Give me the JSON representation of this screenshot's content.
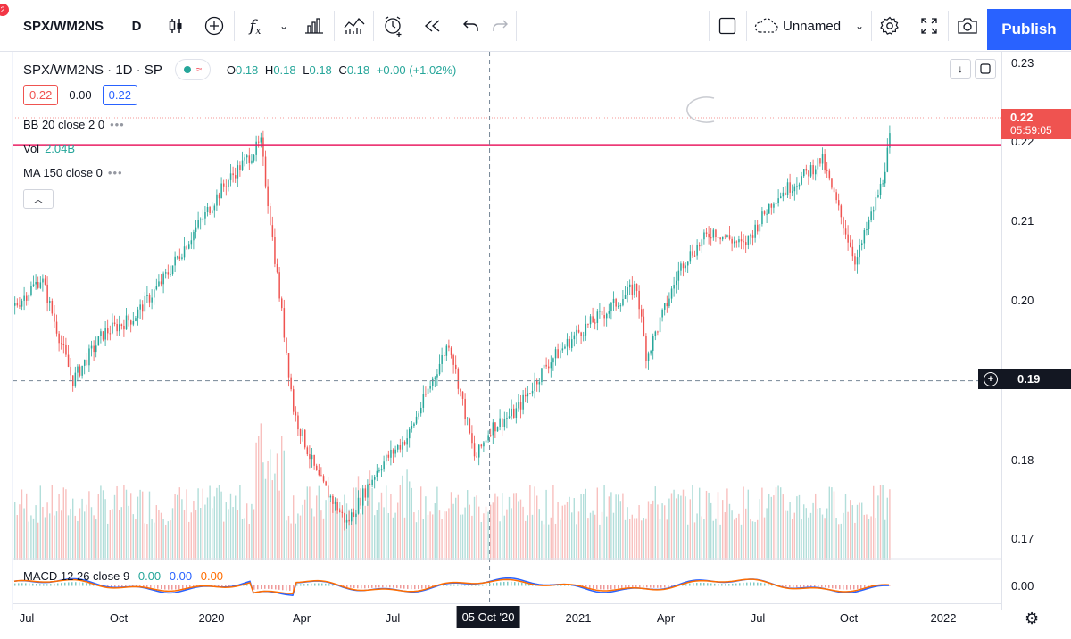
{
  "toolbar": {
    "notification_count": "2",
    "symbol": "SPX/WM2NS",
    "interval": "D",
    "layout_name": "Unnamed",
    "publish_label": "Publish"
  },
  "legend": {
    "title": "SPX/WM2NS · 1D · SP",
    "open_label": "O",
    "open": "0.18",
    "high_label": "H",
    "high": "0.18",
    "low_label": "L",
    "low": "0.18",
    "close_label": "C",
    "close": "0.18",
    "change": "+0.00 (+1.02%)",
    "bid": "0.22",
    "spread": "0.00",
    "ask": "0.22"
  },
  "indicators": {
    "bb": "BB 20 close 2 0",
    "vol_label": "Vol",
    "vol_value": "2.04B",
    "ma": "MA 150 close 0",
    "macd_label": "MACD 12 26 close 9",
    "macd_values": [
      "0.00",
      "0.00",
      "0.00"
    ]
  },
  "price_axis": {
    "labels": [
      "0.23",
      "0.22",
      "0.21",
      "0.20",
      "0.19",
      "0.18",
      "0.17",
      "0.00"
    ],
    "last_price": "0.22",
    "countdown": "05:59:05",
    "crosshair_price": "0.19"
  },
  "time_axis": {
    "labels": [
      "Jul",
      "Oct",
      "2020",
      "Apr",
      "Jul",
      "2021",
      "Apr",
      "Jul",
      "Oct",
      "2022"
    ],
    "crosshair_date": "05 Oct '20"
  },
  "colors": {
    "up": "#26a69a",
    "down": "#ef5350",
    "horizontal_line": "#e91e63",
    "accent": "#2962ff",
    "macd_line": "#2962ff",
    "signal_line": "#ff6d00"
  },
  "chart_data": {
    "type": "candlestick",
    "title": "SPX/WM2NS · 1D · SP",
    "x": [
      "2019-06-15",
      "2019-07-15",
      "2019-08-15",
      "2019-09-15",
      "2019-10-15",
      "2019-11-15",
      "2019-12-15",
      "2020-01-15",
      "2020-02-19",
      "2020-03-23",
      "2020-04-15",
      "2020-05-15",
      "2020-06-15",
      "2020-07-15",
      "2020-08-25",
      "2020-09-20",
      "2020-10-05",
      "2020-10-30",
      "2020-11-30",
      "2020-12-31",
      "2021-01-31",
      "2021-02-28",
      "2021-03-10",
      "2021-04-15",
      "2021-05-15",
      "2021-06-15",
      "2021-07-15",
      "2021-08-15",
      "2021-09-01",
      "2021-10-05",
      "2021-10-31",
      "2021-11-10"
    ],
    "close": [
      0.199,
      0.203,
      0.19,
      0.196,
      0.198,
      0.203,
      0.209,
      0.215,
      0.22,
      0.186,
      0.178,
      0.172,
      0.179,
      0.183,
      0.195,
      0.18,
      0.184,
      0.186,
      0.192,
      0.196,
      0.199,
      0.202,
      0.193,
      0.205,
      0.209,
      0.207,
      0.213,
      0.216,
      0.218,
      0.205,
      0.215,
      0.222
    ],
    "ylim": [
      0.165,
      0.23
    ],
    "horizontal_line": 0.22,
    "crosshair": {
      "x": "2020-10-05",
      "y": 0.19
    },
    "volume_series": "Vol",
    "macd": {
      "macd": "0.00",
      "signal": "0.00",
      "histogram": "0.00"
    }
  }
}
